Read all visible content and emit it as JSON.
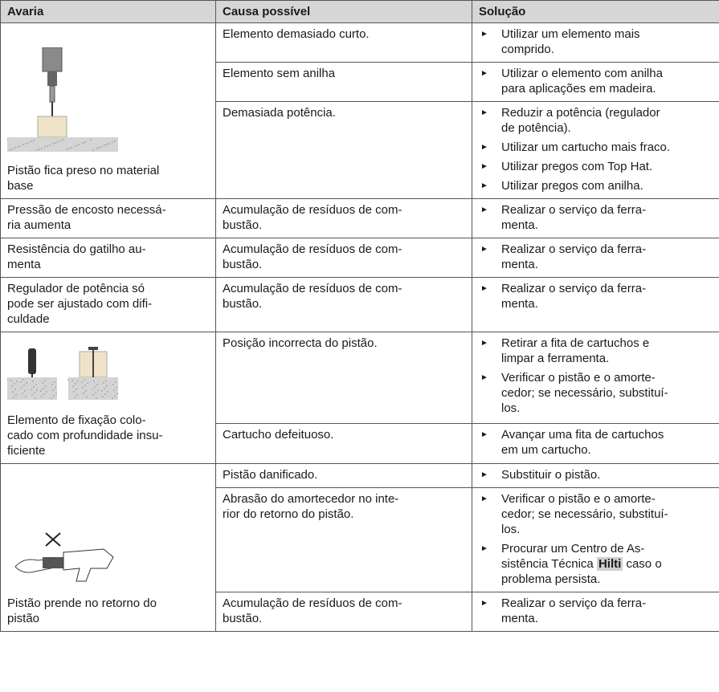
{
  "table": {
    "header": [
      "Avaria",
      "Causa possível",
      "Solução"
    ],
    "rows": [
      {
        "fault": "Pistão fica preso no material\nbase",
        "causes": [
          {
            "cause": "Elemento demasiado curto.",
            "solutions": [
              "Utilizar um elemento mais\ncomprido."
            ]
          },
          {
            "cause": "Elemento sem anilha",
            "solutions": [
              "Utilizar o elemento com anilha\npara aplicações em madeira."
            ]
          },
          {
            "cause": "Demasiada potência.",
            "solutions": [
              "Reduzir a potência (regulador\nde potência).",
              "Utilizar um cartucho mais fraco.",
              "Utilizar pregos com Top Hat.",
              "Utilizar pregos com anilha."
            ]
          }
        ]
      },
      {
        "fault": "Pressão de encosto necessá-\nria aumenta",
        "causes": [
          {
            "cause": "Acumulação de resíduos de com-\nbustão.",
            "solutions": [
              "Realizar o serviço da ferra-\nmenta."
            ]
          }
        ]
      },
      {
        "fault": "Resistência do gatilho au-\nmenta",
        "causes": [
          {
            "cause": "Acumulação de resíduos de com-\nbustão.",
            "solutions": [
              "Realizar o serviço da ferra-\nmenta."
            ]
          }
        ]
      },
      {
        "fault": "Regulador de potência só\npode ser ajustado com difi-\nculdade",
        "causes": [
          {
            "cause": "Acumulação de resíduos de com-\nbustão.",
            "solutions": [
              "Realizar o serviço da ferra-\nmenta."
            ]
          }
        ]
      },
      {
        "fault": "Elemento de fixação colo-\ncado com profundidade insu-\nficiente",
        "causes": [
          {
            "cause": "Posição incorrecta do pistão.",
            "solutions": [
              "Retirar a fita de cartuchos e\nlimpar a ferramenta.",
              "Verificar o pistão e o amorte-\ncedor; se necessário, substituí-\nlos."
            ]
          },
          {
            "cause": "Cartucho defeituoso.",
            "solutions": [
              "Avançar uma fita de cartuchos\nem um cartucho."
            ]
          }
        ]
      },
      {
        "fault": "Pistão prende no retorno do\npistão",
        "causes": [
          {
            "cause": "Pistão danificado.",
            "solutions": [
              "Substituir o pistão."
            ]
          },
          {
            "cause": "Abrasão do amortecedor no inte-\nrior do retorno do pistão.",
            "solutions": [
              "Verificar o pistão e o amorte-\ncedor; se necessário, substituí-\nlos.",
              [
                "Procurar um Centro de As-\nsistência Técnica ",
                "Hilti",
                " caso o\nproblema persista."
              ]
            ]
          },
          {
            "cause": "Acumulação de resíduos de com-\nbustão.",
            "solutions": [
              "Realizar o serviço da ferra-\nmenta."
            ]
          }
        ]
      }
    ]
  }
}
